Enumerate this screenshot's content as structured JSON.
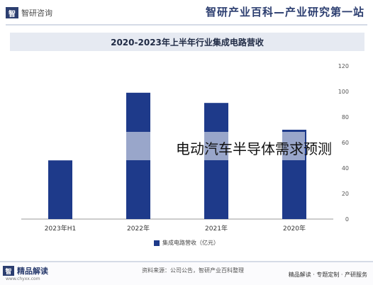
{
  "header": {
    "brand_name": "智研咨询",
    "brand_logo_text": "智",
    "slogan": "智研产业百科—产业研究第一站"
  },
  "chart_data": {
    "type": "bar",
    "title": "2020-2023年上半年行业集成电路营收",
    "categories": [
      "2023年H1",
      "2022年",
      "2021年",
      "2020年"
    ],
    "series": [
      {
        "name": "集成电路营收（亿元）",
        "values": [
          46,
          99,
          91,
          70
        ]
      }
    ],
    "ylim": [
      0,
      120
    ],
    "yticks": [
      0,
      20,
      40,
      60,
      80,
      100,
      120
    ],
    "y_axis_side": "right",
    "grid": false,
    "legend": "bottom-center",
    "bar_color": "#1e3a8a"
  },
  "overlay": {
    "text": "电动汽车半导体需求预测"
  },
  "footer": {
    "brand": "精品解读",
    "logo_text": "智",
    "url": "www.chyxx.com",
    "source": "资料来源：公司公告，智研产业百科整理",
    "services": "精品解读 · 专题定制 · 产研服务"
  }
}
